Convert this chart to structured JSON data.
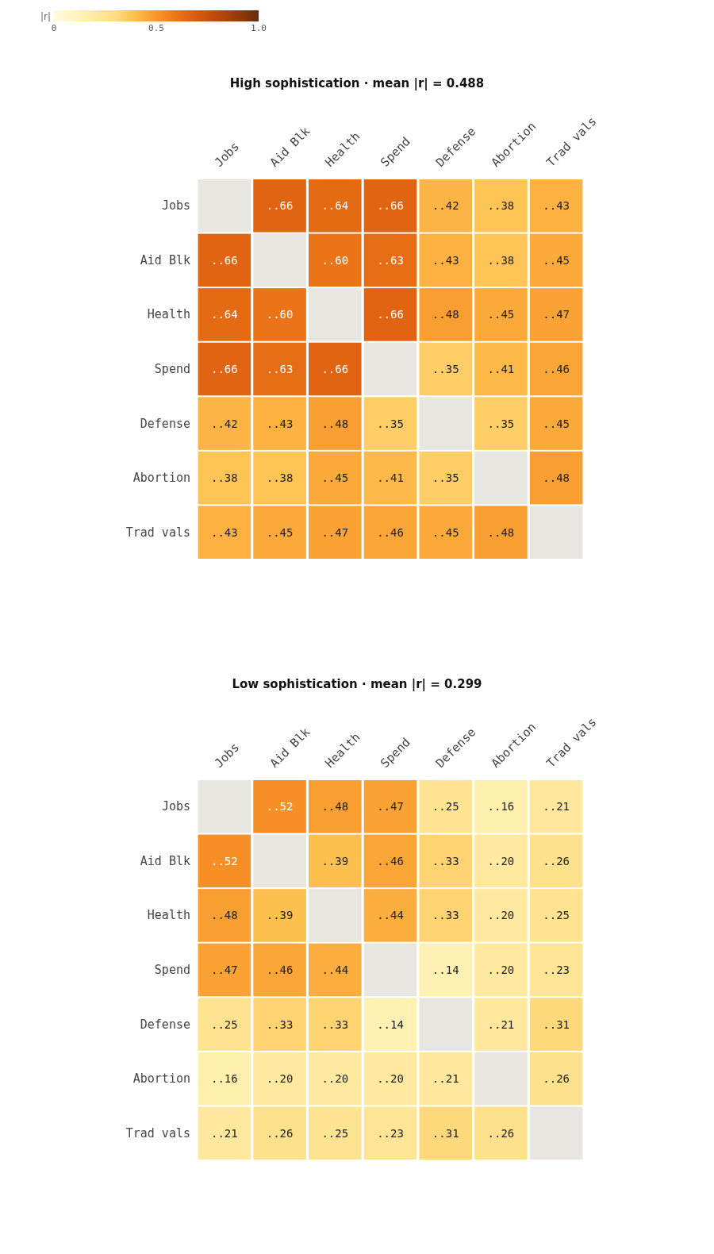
{
  "chart_data": [
    {
      "type": "heatmap",
      "title": "High sophistication · mean |r| = 0.488",
      "clabel": "|r|",
      "clim": [
        0,
        1
      ],
      "cticks": [
        0,
        0.5,
        {
          "value": 1,
          "label": "1.0"
        }
      ],
      "categories": [
        "Jobs",
        "Aid Blk",
        "Health",
        "Spend",
        "Defense",
        "Abortion",
        "Trad vals"
      ],
      "y_categories": [
        "Jobs",
        "Aid Blk",
        "Health",
        "Spend",
        "Defense",
        "Abortion",
        "Trad vals"
      ],
      "cells": [
        [
          null,
          0.66,
          0.64,
          0.66,
          0.42,
          0.38,
          0.43
        ],
        [
          0.66,
          null,
          0.6,
          0.63,
          0.43,
          0.38,
          0.45
        ],
        [
          0.64,
          0.6,
          null,
          0.66,
          0.48,
          0.45,
          0.47
        ],
        [
          0.66,
          0.63,
          0.66,
          null,
          0.35,
          0.41,
          0.46
        ],
        [
          0.42,
          0.43,
          0.48,
          0.35,
          null,
          0.35,
          0.45
        ],
        [
          0.38,
          0.38,
          0.45,
          0.41,
          0.35,
          null,
          0.48
        ],
        [
          0.43,
          0.45,
          0.47,
          0.46,
          0.45,
          0.48,
          null
        ]
      ],
      "cell_labels": [
        [
          null,
          "..66",
          "..64",
          "..66",
          "..42",
          "..38",
          "..43"
        ],
        [
          "..66",
          null,
          "..60",
          "..63",
          "..43",
          "..38",
          "..45"
        ],
        [
          "..64",
          "..60",
          null,
          "..66",
          "..48",
          "..45",
          "..47"
        ],
        [
          "..66",
          "..63",
          "..66",
          null,
          "..35",
          "..41",
          "..46"
        ],
        [
          "..42",
          "..43",
          "..48",
          "..35",
          null,
          "..35",
          "..45"
        ],
        [
          "..38",
          "..38",
          "..45",
          "..41",
          "..35",
          null,
          "..48"
        ],
        [
          "..43",
          "..45",
          "..47",
          "..46",
          "..45",
          "..48",
          null
        ]
      ]
    },
    {
      "type": "heatmap",
      "title": "Low sophistication · mean |r| = 0.299",
      "categories": [
        "Jobs",
        "Aid Blk",
        "Health",
        "Spend",
        "Defense",
        "Abortion",
        "Trad vals"
      ],
      "y_categories": [
        "Jobs",
        "Aid Blk",
        "Health",
        "Spend",
        "Defense",
        "Abortion",
        "Trad vals"
      ],
      "cells": [
        [
          null,
          0.52,
          0.48,
          0.47,
          0.25,
          0.16,
          0.21
        ],
        [
          0.52,
          null,
          0.39,
          0.46,
          0.33,
          0.2,
          0.26
        ],
        [
          0.48,
          0.39,
          null,
          0.44,
          0.33,
          0.2,
          0.25
        ],
        [
          0.47,
          0.46,
          0.44,
          null,
          0.14,
          0.2,
          0.23
        ],
        [
          0.25,
          0.33,
          0.33,
          0.14,
          null,
          0.21,
          0.31
        ],
        [
          0.16,
          0.2,
          0.2,
          0.2,
          0.21,
          null,
          0.26
        ],
        [
          0.21,
          0.26,
          0.25,
          0.23,
          0.31,
          0.26,
          null
        ]
      ],
      "cell_labels": [
        [
          null,
          "..52",
          "..48",
          "..47",
          "..25",
          "..16",
          "..21"
        ],
        [
          "..52",
          null,
          "..39",
          "..46",
          "..33",
          "..20",
          "..26"
        ],
        [
          "..48",
          "..39",
          null,
          "..44",
          "..33",
          "..20",
          "..25"
        ],
        [
          "..47",
          "..46",
          "..44",
          null,
          "..14",
          "..20",
          "..23"
        ],
        [
          "..25",
          "..33",
          "..33",
          "..14",
          null,
          "..21",
          "..31"
        ],
        [
          "..16",
          "..20",
          "..20",
          "..20",
          "..21",
          null,
          "..26"
        ],
        [
          "..21",
          "..26",
          "..25",
          "..23",
          "..31",
          "..26",
          null
        ]
      ]
    }
  ]
}
